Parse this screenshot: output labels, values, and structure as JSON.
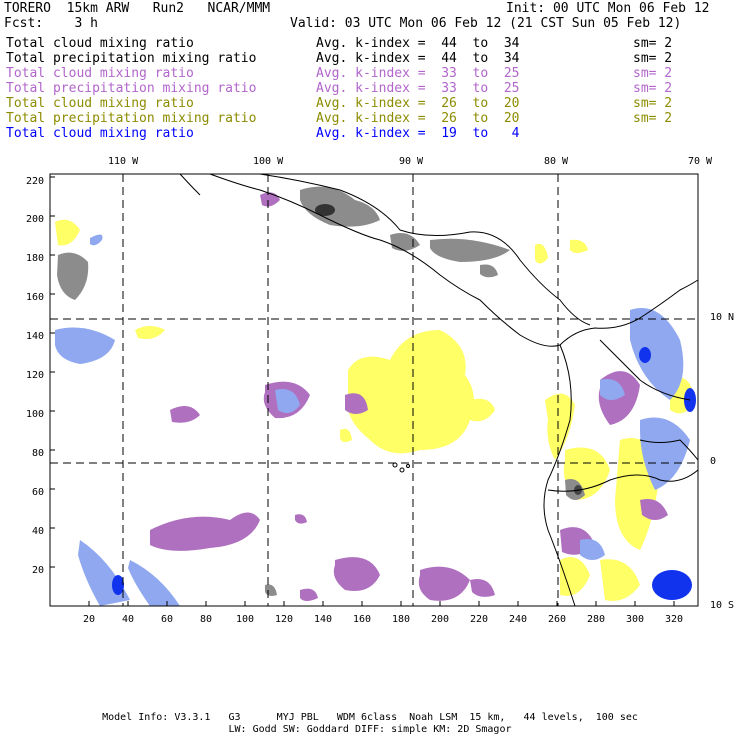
{
  "header": {
    "model": "TORERO  15km ARW   Run2   NCAR/MMM",
    "init": "Init: 00 UTC Mon 06 Feb 12",
    "fcst": "Fcst:    3 h",
    "valid": "Valid: 03 UTC Mon 06 Feb 12 (21 CST Sun 05 Feb 12)"
  },
  "legend": [
    {
      "field": "Total cloud mixing ratio",
      "avg": "Avg. k-index =  44  to  34",
      "sm": "sm= 2",
      "color": "#000000"
    },
    {
      "field": "Total precipitation mixing ratio",
      "avg": "Avg. k-index =  44  to  34",
      "sm": "sm= 2",
      "color": "#000000"
    },
    {
      "field": "Total cloud mixing ratio",
      "avg": "Avg. k-index =  33  to  25",
      "sm": "sm= 2",
      "color": "#b266cc"
    },
    {
      "field": "Total precipitation mixing ratio",
      "avg": "Avg. k-index =  33  to  25",
      "sm": "sm= 2",
      "color": "#b266cc"
    },
    {
      "field": "Total cloud mixing ratio",
      "avg": "Avg. k-index =  26  to  20",
      "sm": "sm= 2",
      "color": "#8c8c00"
    },
    {
      "field": "Total precipitation mixing ratio",
      "avg": "Avg. k-index =  26  to  20",
      "sm": "sm= 2",
      "color": "#8c8c00"
    },
    {
      "field": "Total cloud mixing ratio",
      "avg": "Avg. k-index =  19  to   4",
      "sm": "",
      "color": "#0000ff"
    }
  ],
  "map": {
    "top_longitudes": [
      "110 W",
      "100 W",
      "90 W",
      "80 W",
      "70 W"
    ],
    "right_latitudes": [
      "10 N",
      "0",
      "10 S"
    ],
    "y_ticks": [
      "220",
      "200",
      "180",
      "160",
      "140",
      "120",
      "100",
      "80",
      "60",
      "40",
      "20"
    ],
    "x_ticks": [
      "20",
      "40",
      "60",
      "80",
      "100",
      "120",
      "140",
      "160",
      "180",
      "200",
      "220",
      "240",
      "260",
      "280",
      "300",
      "320"
    ],
    "colors": {
      "yellow": "#ffff66",
      "purple": "#b070c0",
      "gray": "#8c8c8c",
      "blue": "#5577ee",
      "darkblue": "#1133ee"
    }
  },
  "footer": {
    "line1": "Model Info: V3.3.1   G3      MYJ PBL   WDM 6class  Noah LSM  15 km,   44 levels,  100 sec",
    "line2": "LW: Godd SW: Goddard DIFF: simple KM: 2D Smagor"
  }
}
